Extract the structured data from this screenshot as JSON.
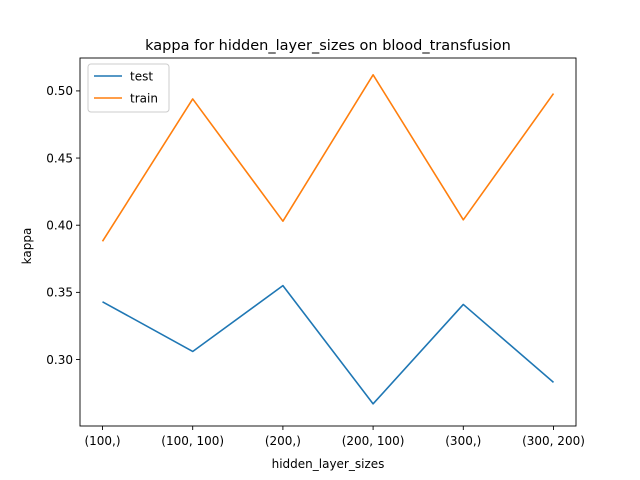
{
  "chart_data": {
    "type": "line",
    "title": "kappa for hidden_layer_sizes on  blood_transfusion",
    "xlabel": "hidden_layer_sizes",
    "ylabel": "kappa",
    "categories": [
      "(100,)",
      "(100, 100)",
      "(200,)",
      "(200, 100)",
      "(300,)",
      "(300, 200)"
    ],
    "ylim": [
      0.2505,
      0.5245
    ],
    "yticks": [
      0.3,
      0.35,
      0.4,
      0.45,
      0.5
    ],
    "ytick_labels": [
      "0.30",
      "0.35",
      "0.40",
      "0.45",
      "0.50"
    ],
    "grid": false,
    "legend_position": "top-left",
    "series": [
      {
        "name": "test",
        "color": "#1f77b4",
        "values": [
          0.343,
          0.306,
          0.355,
          0.267,
          0.341,
          0.283
        ]
      },
      {
        "name": "train",
        "color": "#ff7f0e",
        "values": [
          0.388,
          0.494,
          0.403,
          0.512,
          0.404,
          0.498
        ]
      }
    ]
  }
}
